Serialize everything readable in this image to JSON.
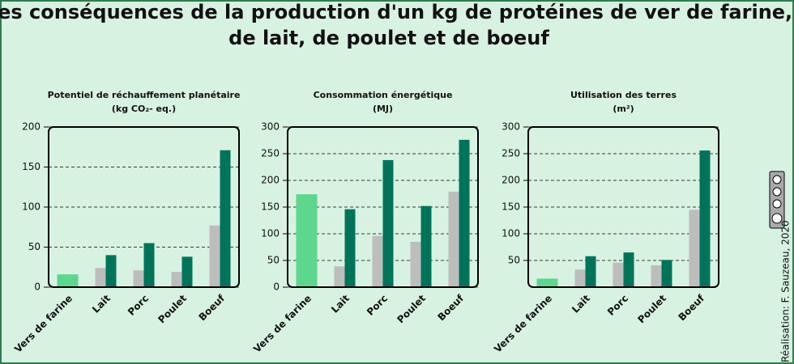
{
  "title_lines": [
    "Les conséquences de la production d'un kg de protéines de ver de farine,",
    "de lait, de poulet et de boeuf"
  ],
  "credit": "Réalisation: F. Sauzeau, 2020",
  "chart_data": [
    {
      "type": "bar",
      "title": "Potentiel de réchauffement planétaire",
      "subtitle": "(kg CO₂- eq.)",
      "categories": [
        "Vers de farine",
        "Lait",
        "Porc",
        "Poulet",
        "Boeuf"
      ],
      "series": [
        {
          "color": "#5dd68e",
          "values": [
            16,
            null,
            null,
            null,
            null
          ]
        },
        {
          "color": "#bdbdbd",
          "values": [
            null,
            24,
            21,
            19,
            77
          ]
        },
        {
          "color": "#00745a",
          "values": [
            null,
            40,
            55,
            38,
            171
          ]
        }
      ],
      "ylim": [
        0,
        200
      ],
      "yticks": [
        0,
        50,
        100,
        150,
        200
      ],
      "grid": true
    },
    {
      "type": "bar",
      "title": "Consommation énergétique",
      "subtitle": "(MJ)",
      "categories": [
        "Vers de farine",
        "Lait",
        "Porc",
        "Poulet",
        "Boeuf"
      ],
      "series": [
        {
          "color": "#5dd68e",
          "values": [
            174,
            null,
            null,
            null,
            null
          ]
        },
        {
          "color": "#bdbdbd",
          "values": [
            null,
            39,
            96,
            85,
            179
          ]
        },
        {
          "color": "#00745a",
          "values": [
            null,
            146,
            238,
            152,
            276
          ]
        }
      ],
      "ylim": [
        0,
        300
      ],
      "yticks": [
        0,
        50,
        100,
        150,
        200,
        250,
        300
      ],
      "grid": true
    },
    {
      "type": "bar",
      "title": "Utilisation des terres",
      "subtitle": "(m²)",
      "categories": [
        "Vers de farine",
        "Lait",
        "Porc",
        "Poulet",
        "Boeuf"
      ],
      "series": [
        {
          "color": "#5dd68e",
          "values": [
            16,
            null,
            null,
            null,
            null
          ]
        },
        {
          "color": "#bdbdbd",
          "values": [
            null,
            33,
            46,
            41,
            145
          ]
        },
        {
          "color": "#00745a",
          "values": [
            null,
            58,
            65,
            51,
            256
          ]
        }
      ],
      "ylim": [
        0,
        300
      ],
      "yticks": [
        50,
        100,
        150,
        200,
        250,
        300
      ],
      "grid": true
    }
  ]
}
